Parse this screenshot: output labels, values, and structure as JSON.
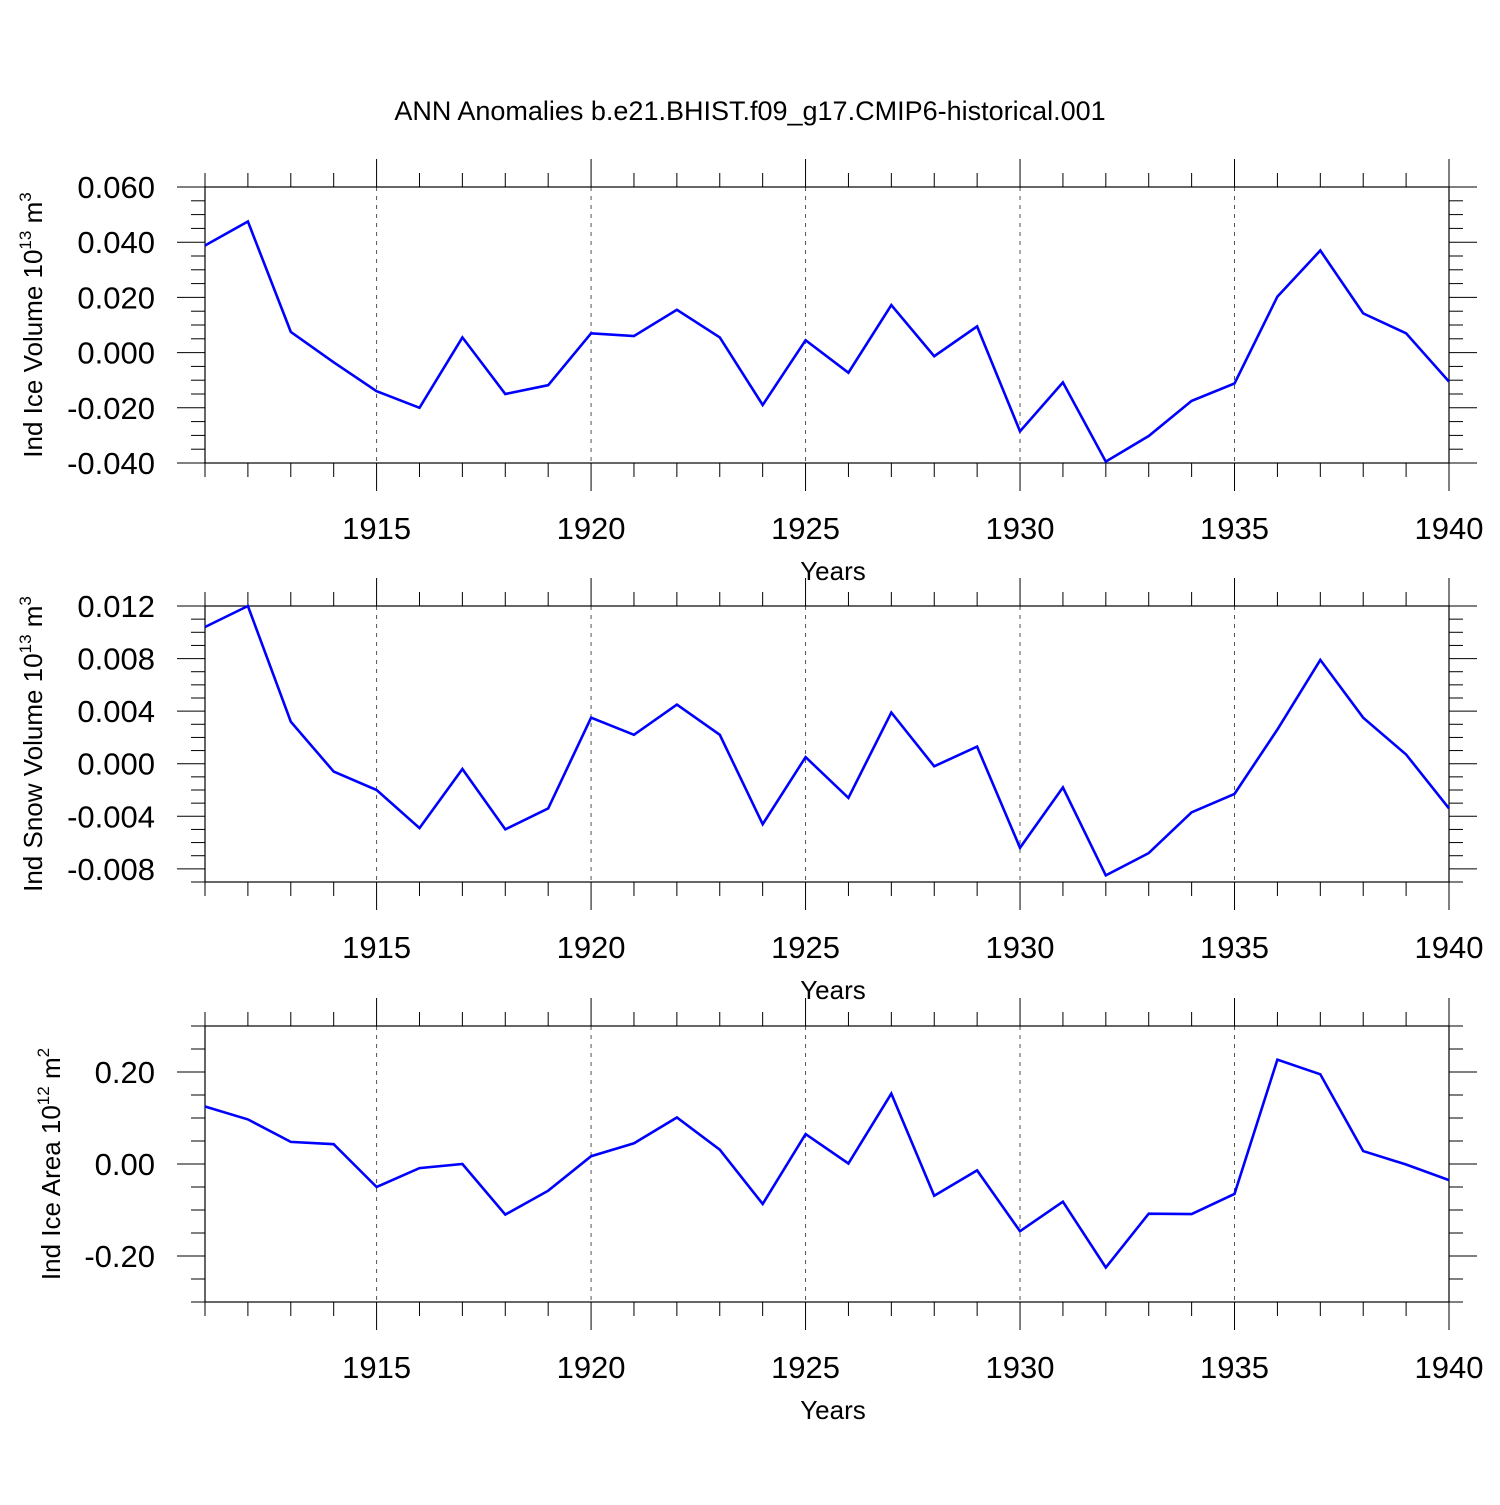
{
  "title": "ANN Anomalies b.e21.BHIST.f09_g17.CMIP6-historical.001",
  "line_color": "#0000ff",
  "chart_data": [
    {
      "type": "line",
      "title": "ANN Anomalies b.e21.BHIST.f09_g17.CMIP6-historical.001",
      "xlabel": "Years",
      "ylabel": "Ind Ice Volume 10",
      "ylabel_exp": "13",
      "ylabel_unit": "m",
      "ylabel_unit_exp": "3",
      "xlim": [
        1911,
        1940
      ],
      "ylim": [
        -0.04,
        0.06
      ],
      "yticks": [
        -0.04,
        -0.02,
        0.0,
        0.02,
        0.04,
        0.06
      ],
      "ytick_labels": [
        "-0.040",
        "-0.020",
        "0.000",
        "0.020",
        "0.040",
        "0.060"
      ],
      "yminor_step": 0.005,
      "xticks": [
        1915,
        1920,
        1925,
        1930,
        1935,
        1940
      ],
      "xtick_labels": [
        "1915",
        "1920",
        "1925",
        "1930",
        "1935",
        "1940"
      ],
      "x": [
        1911,
        1912,
        1913,
        1914,
        1915,
        1916,
        1917,
        1918,
        1919,
        1920,
        1921,
        1922,
        1923,
        1924,
        1925,
        1926,
        1927,
        1928,
        1929,
        1930,
        1931,
        1932,
        1933,
        1934,
        1935,
        1936,
        1937,
        1938,
        1939,
        1940
      ],
      "series": [
        {
          "name": "Ind Ice Volume",
          "values": [
            0.0388,
            0.0475,
            0.0075,
            -0.0035,
            -0.014,
            -0.02,
            0.0055,
            -0.015,
            -0.0118,
            0.007,
            0.006,
            0.0155,
            0.0055,
            -0.019,
            0.0045,
            -0.0073,
            0.0172,
            -0.0013,
            0.0095,
            -0.0285,
            -0.0108,
            -0.0395,
            -0.0302,
            -0.0175,
            -0.0112,
            0.0203,
            0.037,
            0.0142,
            0.007,
            -0.0105
          ]
        }
      ]
    },
    {
      "type": "line",
      "xlabel": "Years",
      "ylabel": "Ind Snow Volume 10",
      "ylabel_exp": "13",
      "ylabel_unit": "m",
      "ylabel_unit_exp": "3",
      "xlim": [
        1911,
        1940
      ],
      "ylim": [
        -0.009,
        0.012
      ],
      "yticks": [
        -0.008,
        -0.004,
        0.0,
        0.004,
        0.008,
        0.012
      ],
      "ytick_labels": [
        "-0.008",
        "-0.004",
        "0.000",
        "0.004",
        "0.008",
        "0.012"
      ],
      "yminor_step": 0.001,
      "xticks": [
        1915,
        1920,
        1925,
        1930,
        1935,
        1940
      ],
      "xtick_labels": [
        "1915",
        "1920",
        "1925",
        "1930",
        "1935",
        "1940"
      ],
      "x": [
        1911,
        1912,
        1913,
        1914,
        1915,
        1916,
        1917,
        1918,
        1919,
        1920,
        1921,
        1922,
        1923,
        1924,
        1925,
        1926,
        1927,
        1928,
        1929,
        1930,
        1931,
        1932,
        1933,
        1934,
        1935,
        1936,
        1937,
        1938,
        1939,
        1940
      ],
      "series": [
        {
          "name": "Ind Snow Volume",
          "values": [
            0.0104,
            0.012,
            0.0032,
            -0.0006,
            -0.002,
            -0.0049,
            -0.0004,
            -0.005,
            -0.0034,
            0.0035,
            0.0022,
            0.0045,
            0.0022,
            -0.0046,
            0.0005,
            -0.0026,
            0.0039,
            -0.0002,
            0.0013,
            -0.0064,
            -0.0018,
            -0.0085,
            -0.0068,
            -0.0037,
            -0.0023,
            0.0026,
            0.0079,
            0.0035,
            0.0007,
            -0.0034
          ]
        }
      ]
    },
    {
      "type": "line",
      "xlabel": "Years",
      "ylabel": "Ind Ice Area 10",
      "ylabel_exp": "12",
      "ylabel_unit": "m",
      "ylabel_unit_exp": "2",
      "xlim": [
        1911,
        1940
      ],
      "ylim": [
        -0.3,
        0.3
      ],
      "yticks": [
        -0.2,
        0.0,
        0.2
      ],
      "ytick_labels": [
        "-0.20",
        "0.00",
        "0.20"
      ],
      "yminor_step": 0.05,
      "xticks": [
        1915,
        1920,
        1925,
        1930,
        1935,
        1940
      ],
      "xtick_labels": [
        "1915",
        "1920",
        "1925",
        "1930",
        "1935",
        "1940"
      ],
      "x": [
        1911,
        1912,
        1913,
        1914,
        1915,
        1916,
        1917,
        1918,
        1919,
        1920,
        1921,
        1922,
        1923,
        1924,
        1925,
        1926,
        1927,
        1928,
        1929,
        1930,
        1931,
        1932,
        1933,
        1934,
        1935,
        1936,
        1937,
        1938,
        1939,
        1940
      ],
      "series": [
        {
          "name": "Ind Ice Area",
          "values": [
            0.125,
            0.097,
            0.048,
            0.043,
            -0.05,
            -0.009,
            0.0,
            -0.11,
            -0.058,
            0.017,
            0.045,
            0.101,
            0.031,
            -0.087,
            0.065,
            0.001,
            0.153,
            -0.069,
            -0.014,
            -0.146,
            -0.082,
            -0.225,
            -0.108,
            -0.109,
            -0.065,
            0.227,
            0.195,
            0.028,
            -0.001,
            -0.035
          ]
        }
      ]
    }
  ]
}
